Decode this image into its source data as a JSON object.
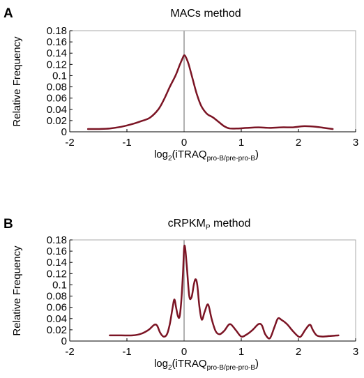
{
  "chart_data": [
    {
      "type": "line",
      "panel_label": "A",
      "title": "MACs method",
      "title_sub": "",
      "title_suffix": "",
      "xlabel": {
        "base": "log",
        "base_sub": "2",
        "main": "(iTRAQ",
        "main_sub": "pro-B/pre-pro-B",
        "close": ")"
      },
      "ylabel": "Relative Frequency",
      "xlim": [
        -2,
        3
      ],
      "ylim": [
        0,
        0.18
      ],
      "xticks": [
        -2,
        -1,
        0,
        1,
        2,
        3
      ],
      "xtick_labels": [
        "-2",
        "-1",
        "0",
        "1",
        "2",
        "3"
      ],
      "yticks": [
        0,
        0.02,
        0.04,
        0.06,
        0.08,
        0.1,
        0.12,
        0.14,
        0.16,
        0.18
      ],
      "ytick_labels": [
        "0",
        "0.02",
        "0.04",
        "0.06",
        "0.08",
        "0.1",
        "0.12",
        "0.14",
        "0.16",
        "0.18"
      ],
      "reference_line_x": 0,
      "line_color": "#7b1424",
      "reference_color": "#b0b0b0",
      "series": [
        {
          "x": [
            -1.68,
            -1.5,
            -1.3,
            -1.1,
            -0.9,
            -0.75,
            -0.6,
            -0.45,
            -0.35,
            -0.25,
            -0.15,
            -0.08,
            -0.03,
            0.0,
            0.03,
            0.08,
            0.15,
            0.22,
            0.3,
            0.4,
            0.5,
            0.6,
            0.7,
            0.8,
            0.95,
            1.1,
            1.3,
            1.5,
            1.7,
            1.9,
            2.1,
            2.3,
            2.45,
            2.6
          ],
          "y": [
            0.005,
            0.005,
            0.006,
            0.009,
            0.014,
            0.019,
            0.025,
            0.04,
            0.058,
            0.08,
            0.1,
            0.118,
            0.13,
            0.136,
            0.133,
            0.12,
            0.094,
            0.068,
            0.046,
            0.032,
            0.026,
            0.018,
            0.01,
            0.006,
            0.006,
            0.007,
            0.008,
            0.007,
            0.008,
            0.008,
            0.01,
            0.009,
            0.007,
            0.005
          ]
        }
      ]
    },
    {
      "type": "line",
      "panel_label": "B",
      "title": "cRPKM",
      "title_sub": "P",
      "title_suffix": " method",
      "xlabel": {
        "base": "log",
        "base_sub": "2",
        "main": "(iTRAQ",
        "main_sub": "pro-B/pre-pro-B",
        "close": ")"
      },
      "ylabel": "Relative Frequency",
      "xlim": [
        -2,
        3
      ],
      "ylim": [
        0,
        0.18
      ],
      "xticks": [
        -2,
        -1,
        0,
        1,
        2,
        3
      ],
      "xtick_labels": [
        "-2",
        "-1",
        "0",
        "1",
        "2",
        "3"
      ],
      "yticks": [
        0,
        0.02,
        0.04,
        0.06,
        0.08,
        0.1,
        0.12,
        0.14,
        0.16,
        0.18
      ],
      "ytick_labels": [
        "0",
        "0.02",
        "0.04",
        "0.06",
        "0.08",
        "0.1",
        "0.12",
        "0.14",
        "0.16",
        "0.18"
      ],
      "reference_line_x": 0,
      "line_color": "#7b1424",
      "reference_color": "#b0b0b0",
      "series": [
        {
          "x": [
            -1.3,
            -1.1,
            -0.9,
            -0.75,
            -0.62,
            -0.52,
            -0.47,
            -0.42,
            -0.36,
            -0.3,
            -0.25,
            -0.2,
            -0.17,
            -0.14,
            -0.11,
            -0.08,
            -0.05,
            -0.02,
            0.0,
            0.02,
            0.05,
            0.09,
            0.13,
            0.17,
            0.2,
            0.23,
            0.27,
            0.31,
            0.36,
            0.42,
            0.48,
            0.55,
            0.62,
            0.7,
            0.8,
            0.9,
            1.0,
            1.1,
            1.2,
            1.3,
            1.36,
            1.42,
            1.5,
            1.58,
            1.64,
            1.7,
            1.8,
            1.9,
            2.0,
            2.05,
            2.12,
            2.2,
            2.25,
            2.32,
            2.42,
            2.55,
            2.7
          ],
          "y": [
            0.01,
            0.01,
            0.01,
            0.013,
            0.02,
            0.029,
            0.027,
            0.015,
            0.008,
            0.012,
            0.03,
            0.06,
            0.074,
            0.06,
            0.045,
            0.043,
            0.07,
            0.12,
            0.165,
            0.165,
            0.13,
            0.08,
            0.078,
            0.1,
            0.11,
            0.1,
            0.06,
            0.038,
            0.052,
            0.065,
            0.04,
            0.018,
            0.012,
            0.018,
            0.03,
            0.02,
            0.008,
            0.012,
            0.02,
            0.03,
            0.028,
            0.012,
            0.005,
            0.025,
            0.04,
            0.038,
            0.03,
            0.018,
            0.008,
            0.009,
            0.02,
            0.029,
            0.02,
            0.01,
            0.008,
            0.009,
            0.01
          ]
        }
      ]
    }
  ]
}
